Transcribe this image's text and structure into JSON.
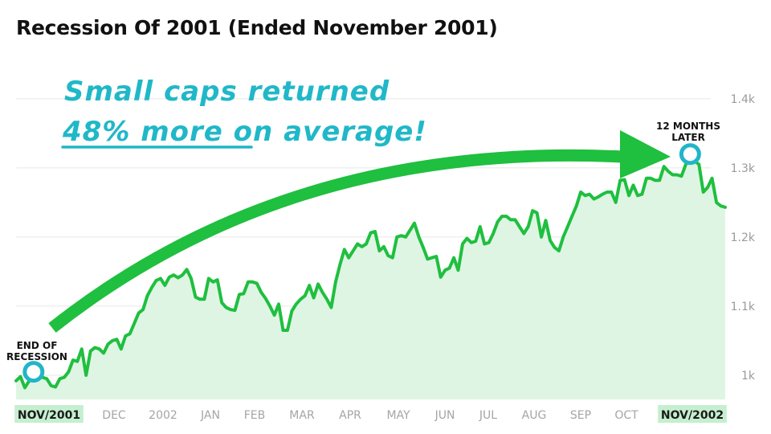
{
  "title": "Recession Of 2001 (Ended November 2001)",
  "annotations": {
    "headline_line1": "Small caps returned",
    "headline_line2_emphasis": "48% more",
    "headline_line2_rest": " on average!",
    "start_label_line1": "END OF",
    "start_label_line2": "RECESSION",
    "end_label_line1": "12 MONTHS",
    "end_label_line2": "LATER"
  },
  "colors": {
    "line": "#1fbf3f",
    "area": "#dff5e4",
    "marker": "#22b5c8",
    "arrow": "#1fbf3f",
    "highlight_label_bg": "#c5efcf"
  },
  "chart_data": {
    "type": "area",
    "ylim": [
      965,
      1415
    ],
    "yticks": [
      1000,
      1100,
      1200,
      1300,
      1400
    ],
    "ytick_labels": [
      "1k",
      "1.1k",
      "1.2k",
      "1.3k",
      "1.4k"
    ],
    "x_tick_labels": [
      "NOV/2001",
      "DEC",
      "2002",
      "JAN",
      "FEB",
      "MAR",
      "APR",
      "MAY",
      "JUN",
      "JUL",
      "AUG",
      "SEP",
      "OCT",
      "NOV/2002"
    ],
    "highlighted_ticks": [
      "NOV/2001",
      "NOV/2002"
    ],
    "grid": true,
    "values": [
      992,
      998,
      982,
      992,
      1005,
      1003,
      997,
      995,
      985,
      983,
      995,
      997,
      1005,
      1022,
      1020,
      1038,
      1000,
      1035,
      1040,
      1038,
      1032,
      1045,
      1050,
      1052,
      1038,
      1057,
      1060,
      1075,
      1090,
      1095,
      1115,
      1127,
      1137,
      1140,
      1130,
      1142,
      1145,
      1141,
      1145,
      1153,
      1140,
      1113,
      1110,
      1110,
      1140,
      1135,
      1138,
      1105,
      1098,
      1095,
      1094,
      1117,
      1118,
      1135,
      1135,
      1133,
      1120,
      1111,
      1100,
      1087,
      1103,
      1065,
      1065,
      1093,
      1103,
      1110,
      1115,
      1130,
      1112,
      1132,
      1120,
      1110,
      1098,
      1135,
      1160,
      1182,
      1170,
      1180,
      1190,
      1186,
      1190,
      1206,
      1208,
      1180,
      1186,
      1173,
      1170,
      1200,
      1202,
      1200,
      1210,
      1220,
      1200,
      1185,
      1168,
      1170,
      1172,
      1142,
      1152,
      1155,
      1170,
      1152,
      1190,
      1198,
      1192,
      1194,
      1215,
      1190,
      1192,
      1205,
      1222,
      1230,
      1230,
      1225,
      1225,
      1215,
      1205,
      1215,
      1238,
      1235,
      1200,
      1224,
      1195,
      1185,
      1180,
      1200,
      1215,
      1230,
      1245,
      1265,
      1260,
      1262,
      1255,
      1258,
      1262,
      1265,
      1265,
      1250,
      1282,
      1283,
      1260,
      1275,
      1260,
      1262,
      1285,
      1285,
      1282,
      1282,
      1302,
      1295,
      1290,
      1290,
      1288,
      1305,
      1320,
      1310,
      1305,
      1265,
      1272,
      1285,
      1250,
      1245,
      1243
    ]
  }
}
